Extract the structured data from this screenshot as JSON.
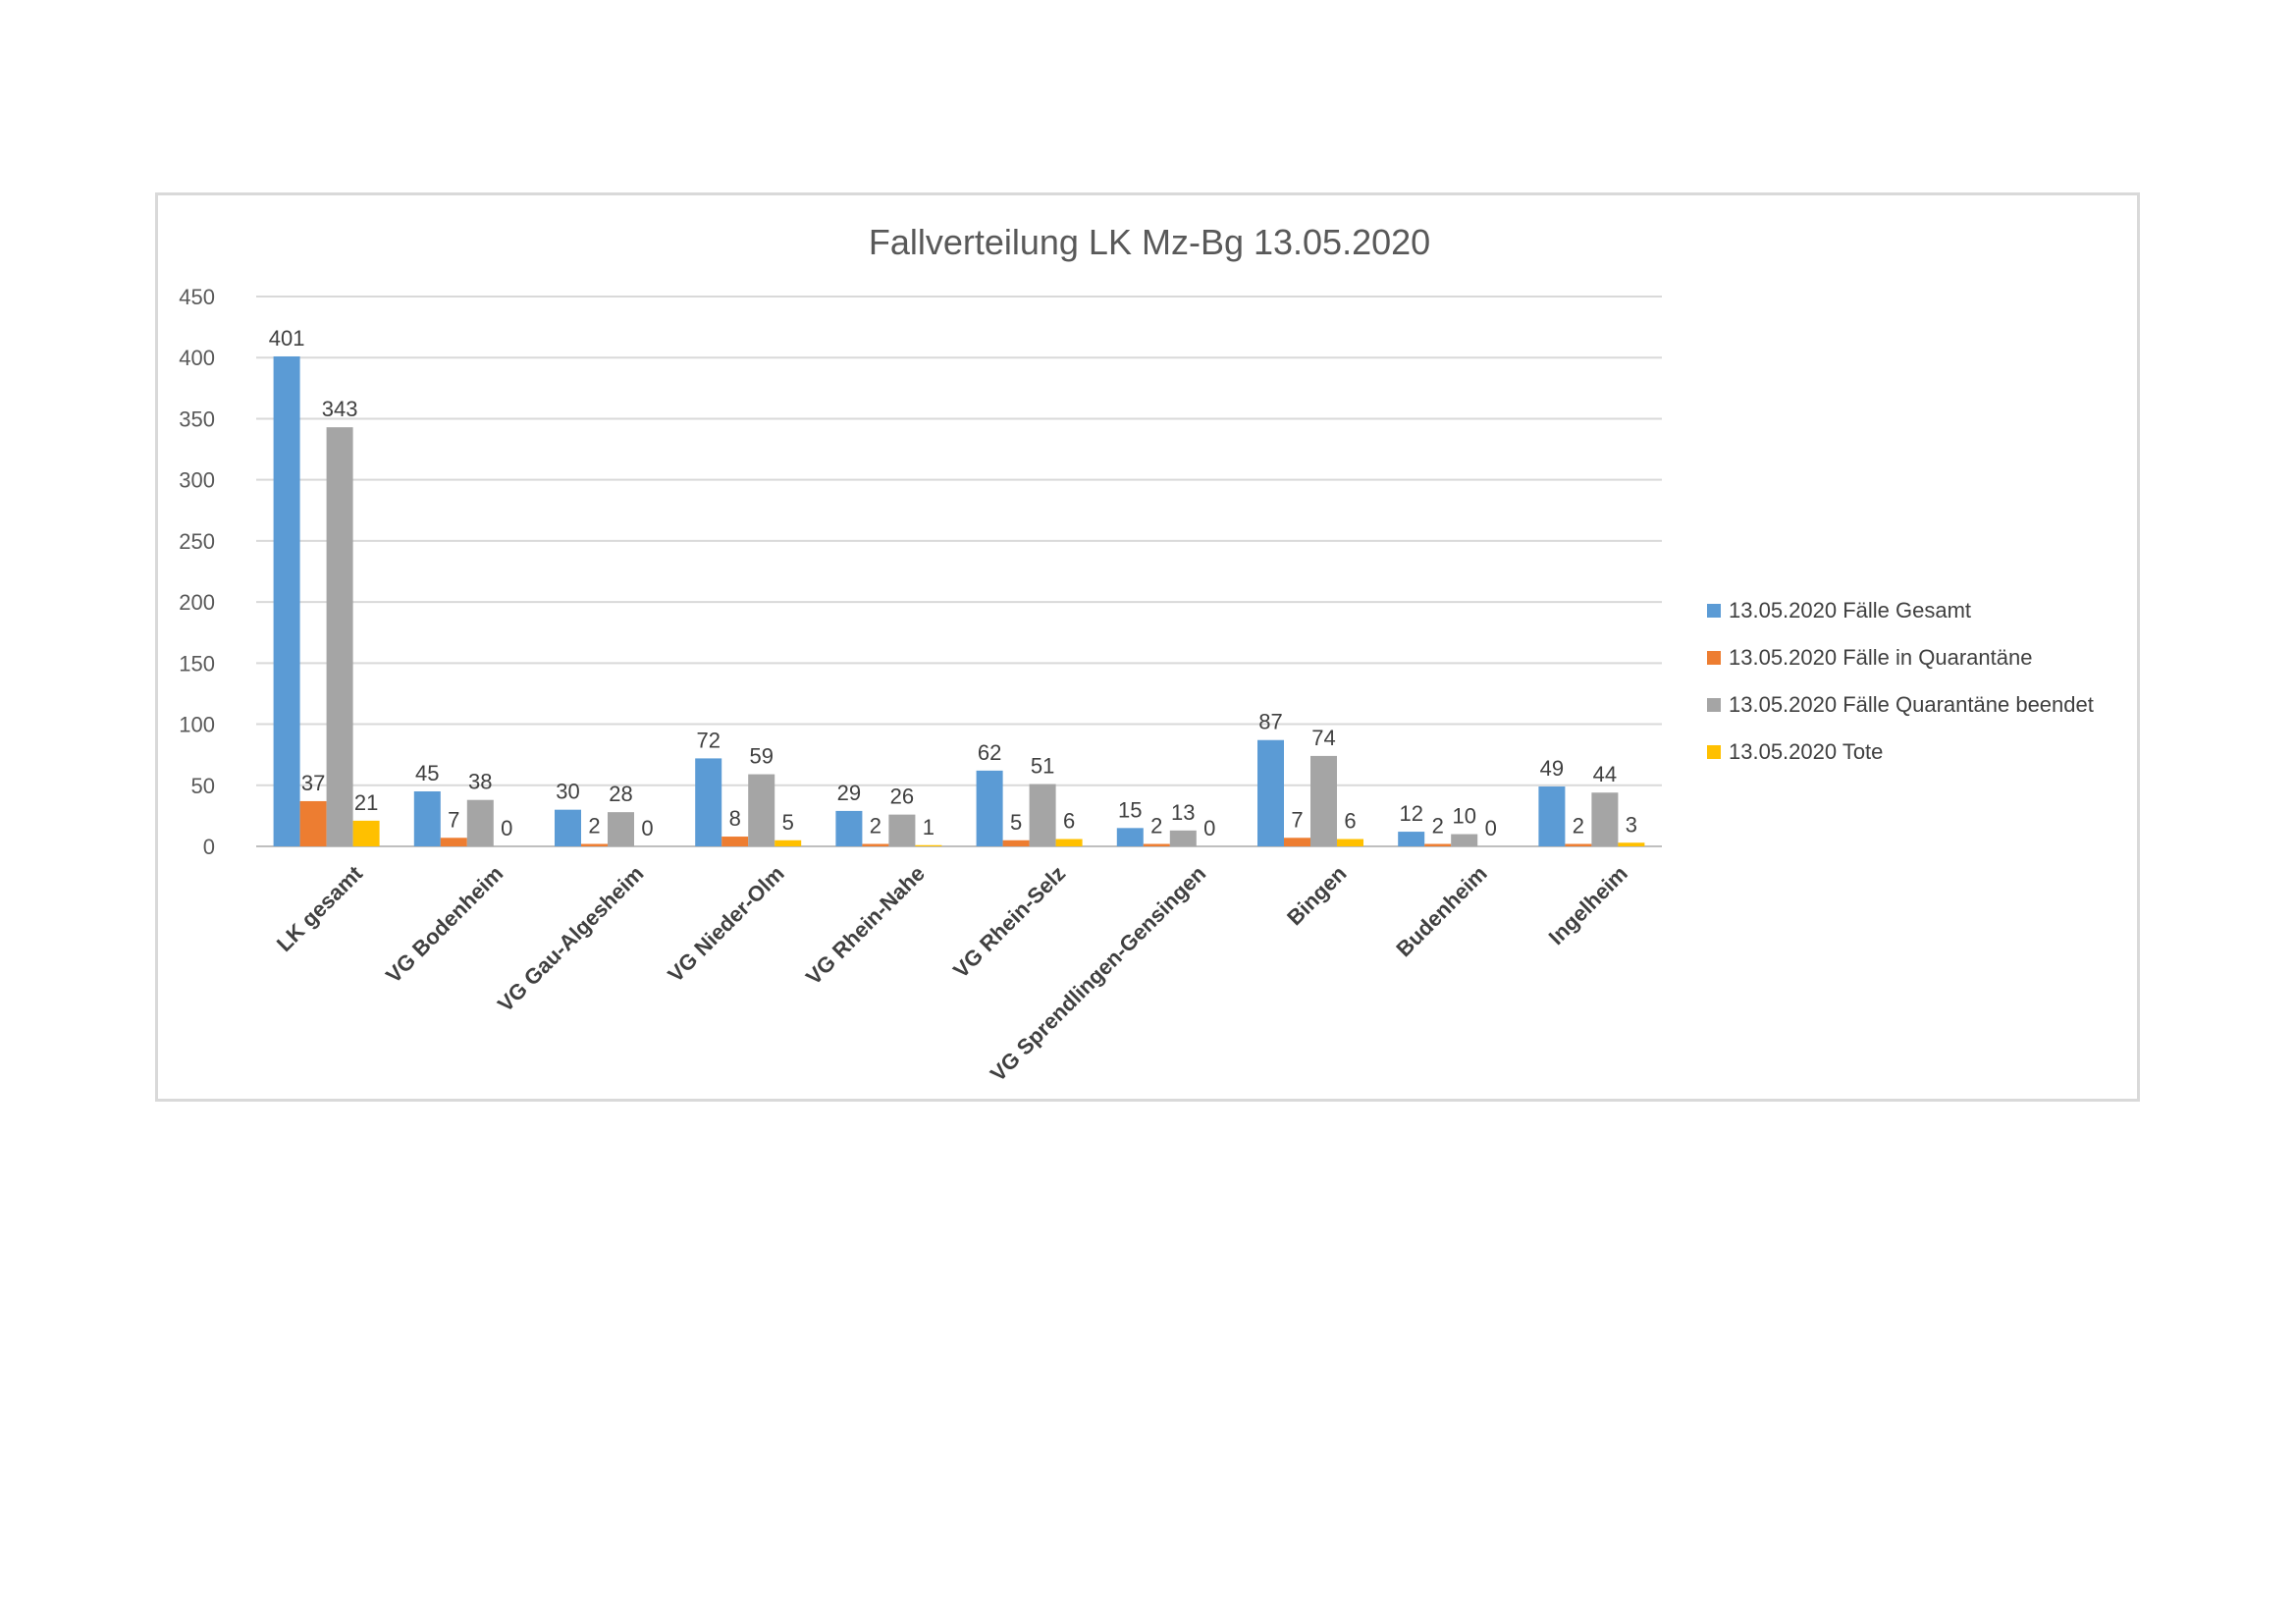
{
  "chart_data": {
    "type": "bar",
    "title": "Fallverteilung LK Mz-Bg 13.05.2020",
    "xlabel": "",
    "ylabel": "",
    "ylim": [
      0,
      450
    ],
    "yticks": [
      0,
      50,
      100,
      150,
      200,
      250,
      300,
      350,
      400,
      450
    ],
    "grid": true,
    "legend_position": "right",
    "categories": [
      "LK gesamt",
      "VG Bodenheim",
      "VG Gau-Algesheim",
      "VG Nieder-Olm",
      "VG Rhein-Nahe",
      "VG Rhein-Selz",
      "VG Sprendlingen-Gensingen",
      "Bingen",
      "Budenheim",
      "Ingelheim"
    ],
    "series": [
      {
        "name": "13.05.2020 Fälle Gesamt",
        "color": "#5b9bd5",
        "values": [
          401,
          45,
          30,
          72,
          29,
          62,
          15,
          87,
          12,
          49
        ],
        "labels": [
          "401",
          "45",
          "30",
          "72",
          "29",
          "62",
          "15",
          "87",
          "12",
          "49"
        ]
      },
      {
        "name": "13.05.2020 Fälle in Quarantäne",
        "color": "#ed7d31",
        "values": [
          37,
          7,
          2,
          8,
          2,
          5,
          2,
          7,
          2,
          2
        ],
        "labels": [
          "37",
          "7",
          "2",
          "8",
          "2",
          "5",
          "2",
          "7",
          "2",
          "2"
        ]
      },
      {
        "name": "13.05.2020 Fälle Quarantäne beendet",
        "color": "#a5a5a5",
        "values": [
          343,
          38,
          28,
          59,
          26,
          51,
          13,
          74,
          10,
          44
        ],
        "labels": [
          "343",
          "38",
          "28",
          "59",
          "26",
          "51",
          "13",
          "74",
          "10",
          "44"
        ]
      },
      {
        "name": "13.05.2020 Tote",
        "color": "#ffc000",
        "values": [
          21,
          0,
          0,
          5,
          1,
          6,
          0,
          6,
          0,
          3
        ],
        "labels": [
          "21",
          "0",
          "0",
          "5",
          "1",
          "6",
          "0",
          "6",
          "0",
          "3"
        ]
      }
    ]
  }
}
